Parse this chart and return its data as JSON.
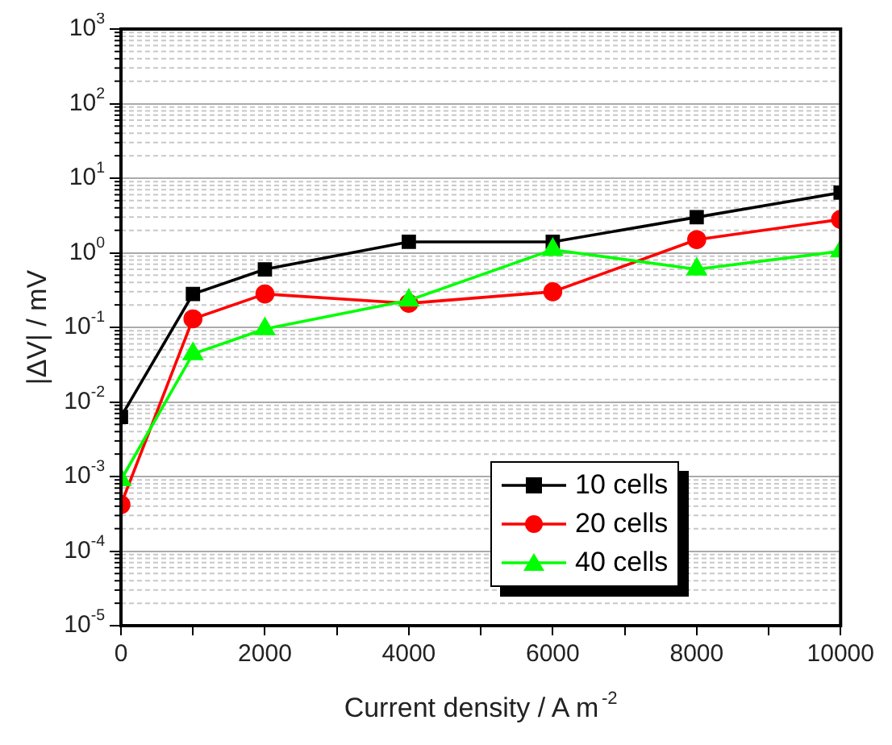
{
  "chart_data": {
    "type": "line",
    "xlabel": "Current density / A m$^{-2}$",
    "ylabel": "|ΔV| / mV",
    "x": [
      0,
      1000,
      2000,
      4000,
      6000,
      8000,
      10000
    ],
    "series": [
      {
        "name": "10 cells",
        "color": "#000000",
        "marker": "square",
        "values": [
          0.0063,
          0.28,
          0.6,
          1.4,
          1.4,
          3.0,
          6.4
        ]
      },
      {
        "name": "20 cells",
        "color": "#ff0000",
        "marker": "circle",
        "values": [
          0.00042,
          0.13,
          0.28,
          0.21,
          0.3,
          1.5,
          2.8
        ]
      },
      {
        "name": "40 cells",
        "color": "#00ff00",
        "marker": "triangle",
        "values": [
          0.0009,
          0.044,
          0.095,
          0.23,
          1.1,
          0.6,
          1.05
        ]
      }
    ],
    "log": "y",
    "xlim": [
      0,
      10000
    ],
    "xticks": [
      0,
      {
        "value": 1000,
        "label": null
      },
      2000,
      {
        "value": 3000,
        "label": null
      },
      4000,
      {
        "value": 5000,
        "label": null
      },
      6000,
      {
        "value": 7000,
        "label": null
      },
      8000,
      {
        "value": 9000,
        "label": null
      },
      10000
    ],
    "ylim": [
      1e-05,
      1000
    ],
    "yticks": [
      {
        "value": 1e-05,
        "label": "10$^{-5}$"
      },
      {
        "value": 0.0001,
        "label": "10$^{-4}$"
      },
      {
        "value": 0.001,
        "label": "10$^{-3}$"
      },
      {
        "value": 0.01,
        "label": "10$^{-2}$"
      },
      {
        "value": 0.1,
        "label": "10$^{-1}$"
      },
      {
        "value": 1,
        "label": "10$^{0}$"
      },
      {
        "value": 10,
        "label": "10$^{1}$"
      },
      {
        "value": 100,
        "label": "10$^{2}$"
      },
      {
        "value": 1000,
        "label": "10$^{3}$"
      }
    ],
    "grid": "y",
    "legend": "bottom right",
    "line_style": "solid"
  }
}
